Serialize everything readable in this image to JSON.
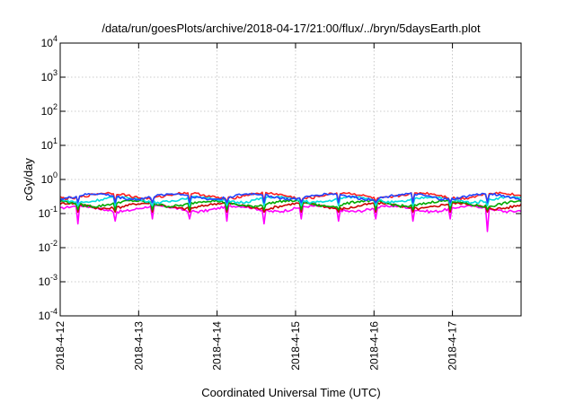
{
  "chart_data": {
    "type": "line",
    "title": "/data/run/goesPlots/archive/2018-04-17/21:00/flux/../bryn/5daysEarth.plot",
    "xlabel": "Coordinated Universal Time (UTC)",
    "ylabel": "cGy/day",
    "yscale": "log",
    "ylim": [
      0.0001,
      10000
    ],
    "xlim": [
      "2018-04-12",
      "2018-04-17T21:00"
    ],
    "grid": true,
    "x_ticks": [
      "2018-4-12",
      "2018-4-13",
      "2018-4-14",
      "2018-4-15",
      "2018-4-16",
      "2018-4-17"
    ],
    "y_ticks": [
      {
        "value": 0.0001,
        "base": "10",
        "exp": "-4"
      },
      {
        "value": 0.001,
        "base": "10",
        "exp": "-3"
      },
      {
        "value": 0.01,
        "base": "10",
        "exp": "-2"
      },
      {
        "value": 0.1,
        "base": "10",
        "exp": "-1"
      },
      {
        "value": 1,
        "base": "10",
        "exp": "0"
      },
      {
        "value": 10,
        "base": "10",
        "exp": "1"
      },
      {
        "value": 100,
        "base": "10",
        "exp": "2"
      },
      {
        "value": 1000,
        "base": "10",
        "exp": "3"
      },
      {
        "value": 10000,
        "base": "10",
        "exp": "4"
      }
    ],
    "series": [
      {
        "color": "#ff00ff",
        "level": 0.14,
        "dips": [
          0.05,
          0.06,
          0.07,
          0.07,
          0.06,
          0.05,
          0.07,
          0.06,
          0.07,
          0.06,
          0.07,
          0.03
        ]
      },
      {
        "color": "#cc0000",
        "level": 0.17
      },
      {
        "color": "#00aa00",
        "level": 0.2
      },
      {
        "color": "#00dddd",
        "level": 0.26
      },
      {
        "color": "#ff2020",
        "level": 0.34
      },
      {
        "color": "#2244ff",
        "level": 0.32
      }
    ]
  }
}
